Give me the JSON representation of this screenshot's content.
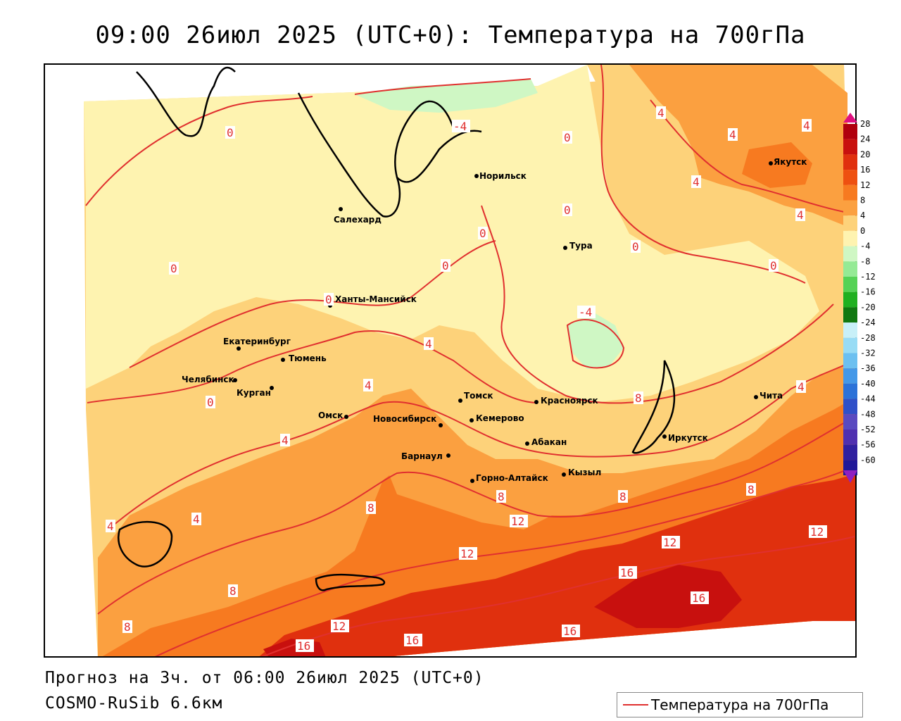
{
  "title": "09:00 26июл 2025 (UTC+0): Температура на 700гПа",
  "footer": {
    "forecast": "Прогноз на 3ч. от 06:00 26июл 2025 (UTC+0)",
    "model": "COSMO-RuSib 6.6км"
  },
  "legend": {
    "label": "Температура на 700гПа",
    "line_color": "#e0302f"
  },
  "colorbar": {
    "levels": [
      "28",
      "24",
      "20",
      "16",
      "12",
      "8",
      "4",
      "0",
      "-4",
      "-8",
      "-12",
      "-16",
      "-20",
      "-24",
      "-28",
      "-32",
      "-36",
      "-40",
      "-44",
      "-48",
      "-52",
      "-56",
      "-60"
    ],
    "colors": [
      "#b0000e",
      "#c8100e",
      "#e0300e",
      "#ee5010",
      "#f77a20",
      "#fba040",
      "#fdd27a",
      "#fef3b0",
      "#cff7c4",
      "#95ea95",
      "#55d255",
      "#20b020",
      "#107810",
      "#c8f0f8",
      "#98dcf5",
      "#6cc0f0",
      "#4498e8",
      "#2c72d8",
      "#3050c8",
      "#5a4ac0",
      "#5030b0",
      "#3020a0",
      "#201898"
    ],
    "top_color": "#e01080",
    "bottom_color": "#9020c0"
  },
  "palette": {
    "t_minus4": "#cff7c4",
    "t_0_4": "#fef3b0",
    "t_4_8": "#fdd27a",
    "t_8_12": "#fba040",
    "t_12_16": "#f77a20",
    "t_16_20": "#e0300e",
    "t_20_24": "#c8100e",
    "isoline": "#e0302f"
  },
  "cities": [
    {
      "name": "Норильск",
      "dot": "yes"
    },
    {
      "name": "Якутск",
      "dot": "yes"
    },
    {
      "name": "Салехард",
      "dot": "yes"
    },
    {
      "name": "Тура",
      "dot": "yes"
    },
    {
      "name": "Ханты-Мансийск",
      "dot": "yes"
    },
    {
      "name": "Екатеринбург",
      "dot": "yes"
    },
    {
      "name": "Тюмень",
      "dot": "yes"
    },
    {
      "name": "Челябинск",
      "dot": "yes"
    },
    {
      "name": "Курган",
      "dot": "yes"
    },
    {
      "name": "Омск",
      "dot": "yes"
    },
    {
      "name": "Новосибирск",
      "dot": "yes"
    },
    {
      "name": "Томск",
      "dot": "yes"
    },
    {
      "name": "Кемерово",
      "dot": "yes"
    },
    {
      "name": "Красноярск",
      "dot": "yes"
    },
    {
      "name": "Барнаул",
      "dot": "yes"
    },
    {
      "name": "Абакан",
      "dot": "yes"
    },
    {
      "name": "Горно-Алтайск",
      "dot": "yes"
    },
    {
      "name": "Кызыл",
      "dot": "yes"
    },
    {
      "name": "Иркутск",
      "dot": "yes"
    },
    {
      "name": "Чита",
      "dot": "yes"
    }
  ],
  "isoline_labels": [
    "-4",
    "0",
    "0",
    "0",
    "0",
    "0",
    "0",
    "0",
    "0",
    "0",
    "0",
    "4",
    "4",
    "4",
    "4",
    "4",
    "4",
    "4",
    "4",
    "4",
    "4",
    "4",
    "-4",
    "8",
    "8",
    "8",
    "8",
    "8",
    "8",
    "8",
    "12",
    "12",
    "12",
    "12",
    "12",
    "16",
    "16",
    "16",
    "16",
    "16"
  ]
}
